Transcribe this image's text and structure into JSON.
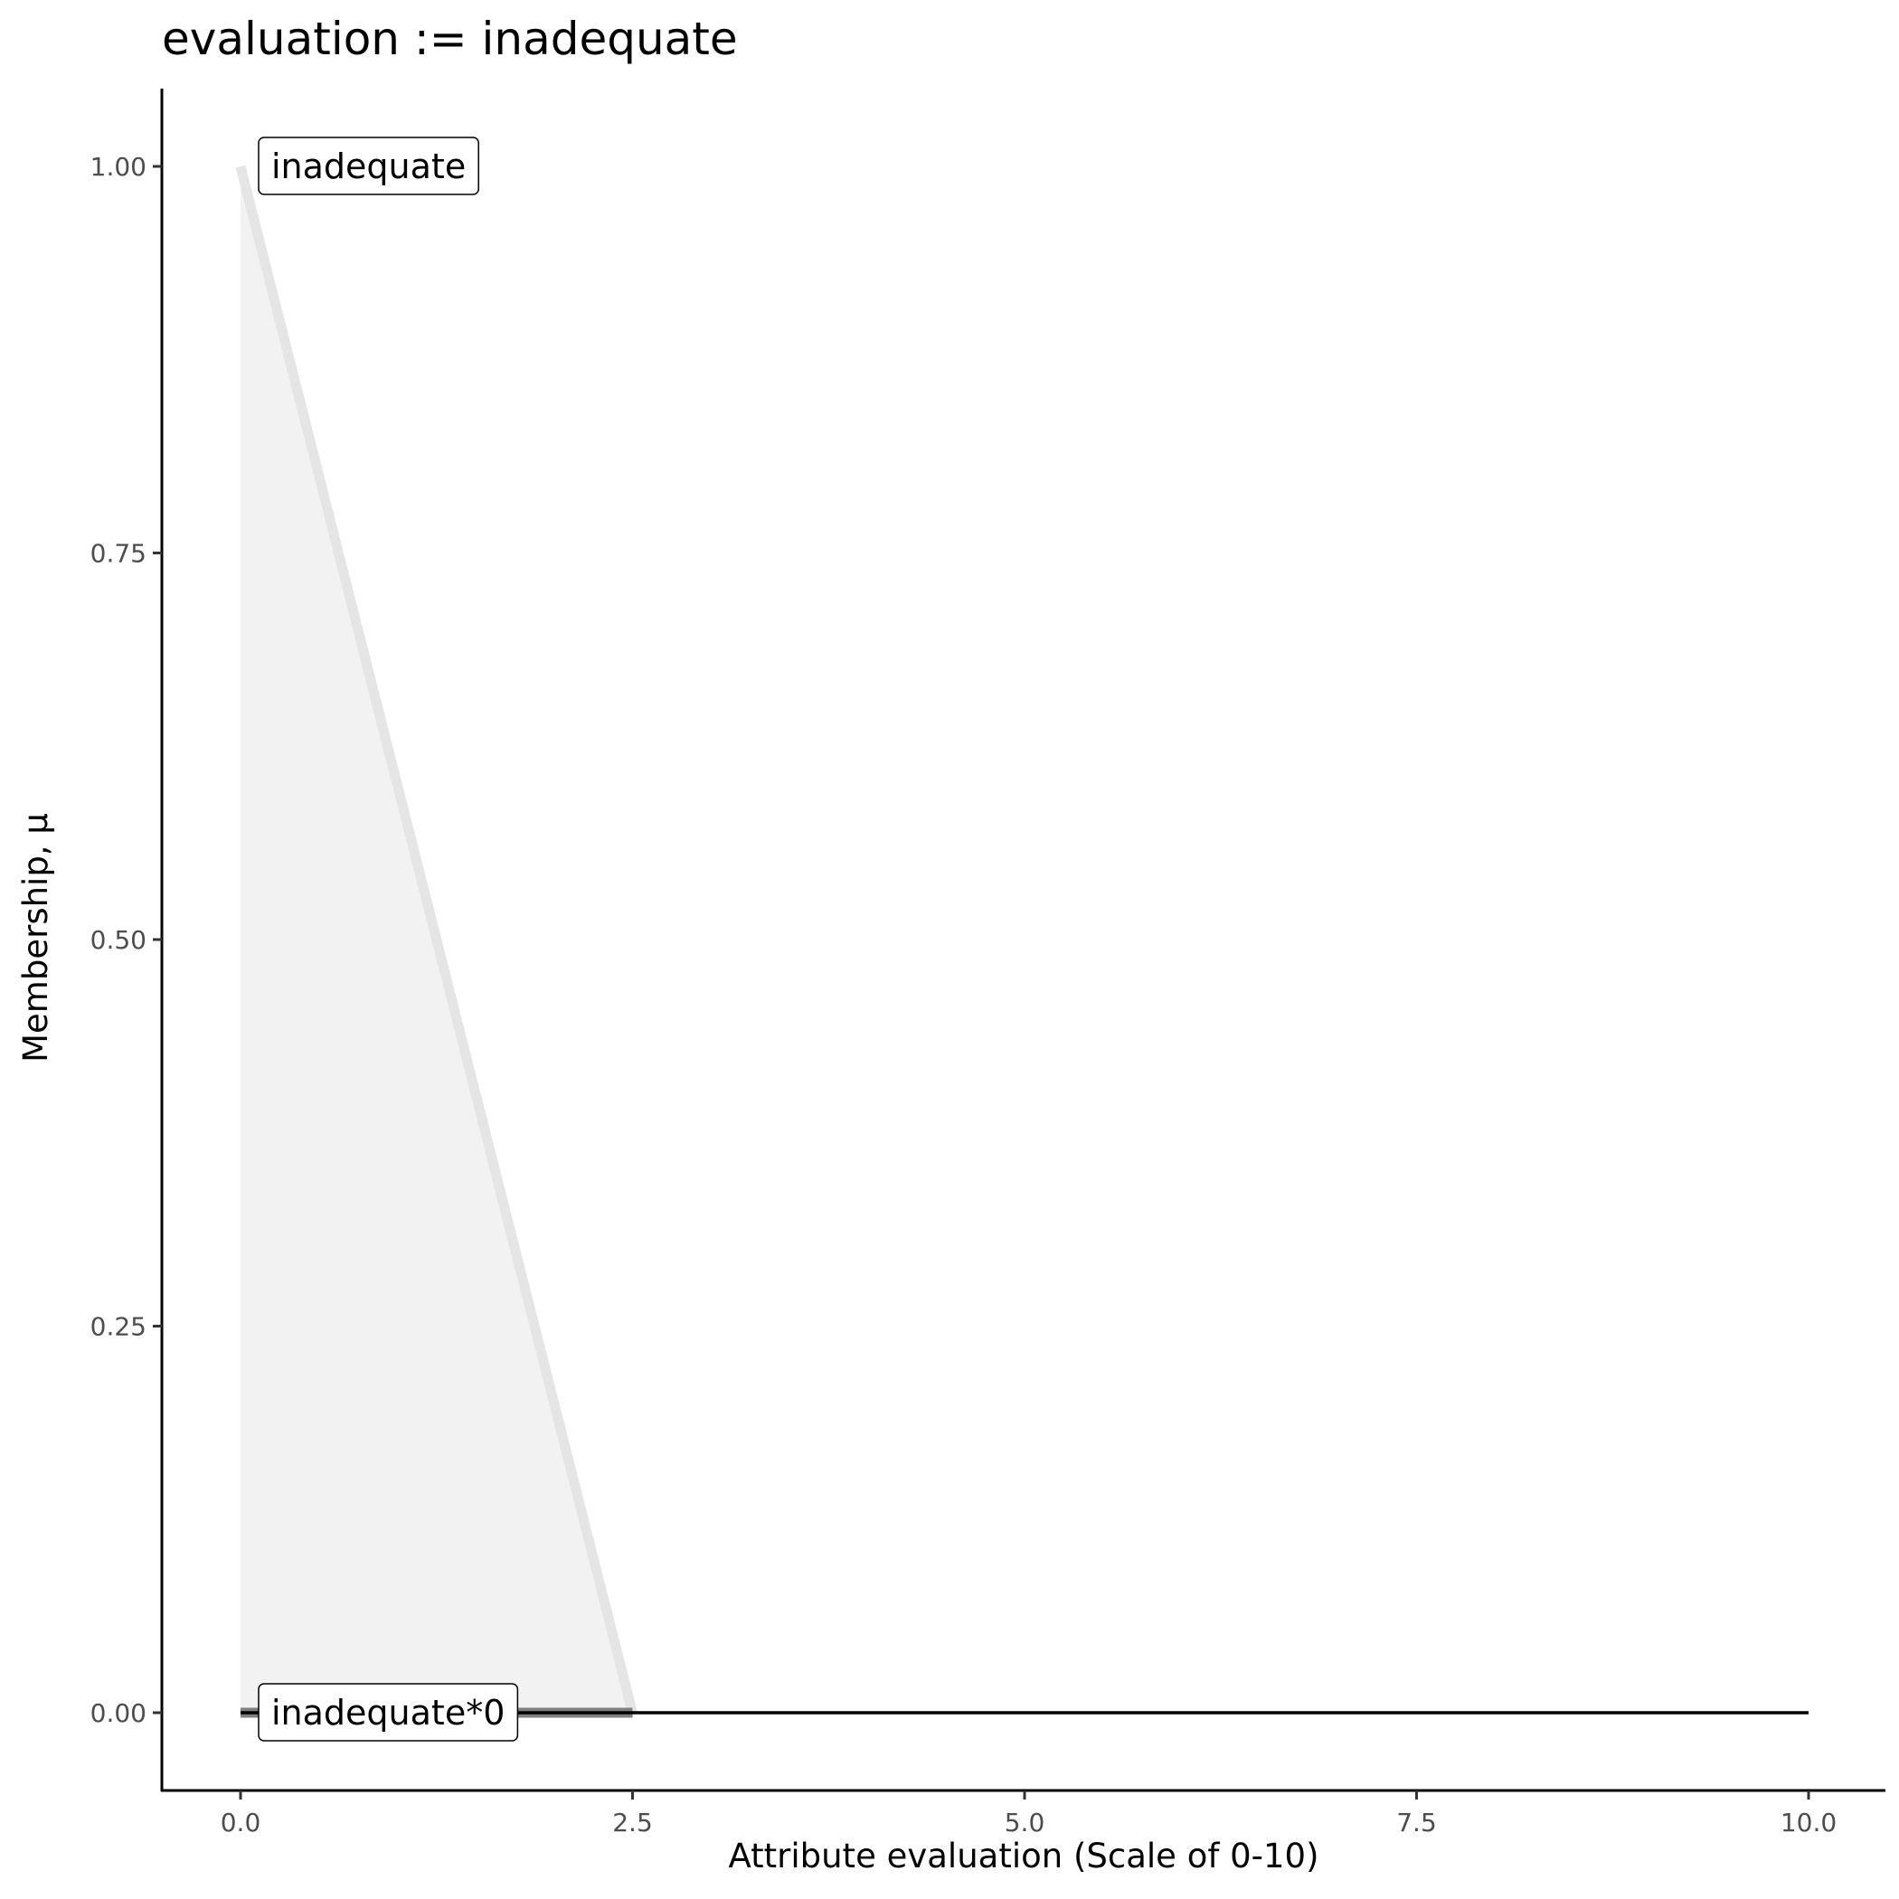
{
  "chart_data": {
    "type": "line",
    "title": "evaluation := inadequate",
    "xlabel": "Attribute evaluation (Scale of 0-10)",
    "ylabel": "Membership, μ",
    "xlim": [
      -0.5,
      10.5
    ],
    "ylim": [
      -0.05,
      1.05
    ],
    "xticks": [
      "0.0",
      "2.5",
      "5.0",
      "7.5",
      "10.0"
    ],
    "yticks": [
      "0.00",
      "0.25",
      "0.50",
      "0.75",
      "1.00"
    ],
    "grid": false,
    "series": [
      {
        "name": "inadequate",
        "x": [
          0,
          2.5
        ],
        "y": [
          1,
          0
        ],
        "color": "#e5e5e5",
        "fill": "#f2f2f2"
      },
      {
        "name": "inadequate*0",
        "x": [
          0,
          2.5
        ],
        "y": [
          0,
          0
        ],
        "color": "#7f7f7f"
      },
      {
        "x": [
          0,
          10
        ],
        "y": [
          0,
          0
        ],
        "color": "#000000"
      }
    ],
    "annotations": [
      {
        "text": "inadequate",
        "x": 0,
        "y": 1
      },
      {
        "text": "inadequate*0",
        "x": 0,
        "y": 0
      }
    ]
  }
}
